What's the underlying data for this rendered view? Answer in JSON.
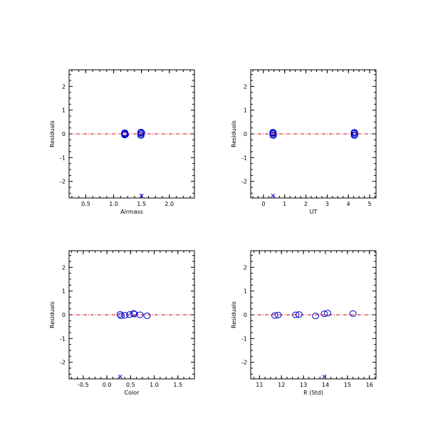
{
  "chart_data": [
    {
      "type": "scatter",
      "xlabel": "Airmass",
      "ylabel": "Residuals",
      "xlim": [
        0.2,
        2.45
      ],
      "ylim": [
        -2.7,
        2.7
      ],
      "xticks": [
        0.5,
        1.0,
        1.5,
        2.0
      ],
      "xticklabels": [
        "0.5",
        "1.0",
        "1.5",
        "2.0"
      ],
      "yticks": [
        -2,
        -1,
        0,
        1,
        2
      ],
      "yticklabels": [
        "-2",
        "-1",
        "0",
        "1",
        "2"
      ],
      "zero_line": 0,
      "points": [
        {
          "x": 1.2,
          "y": 0.05
        },
        {
          "x": 1.2,
          "y": 0.0
        },
        {
          "x": 1.2,
          "y": -0.05
        },
        {
          "x": 1.2,
          "y": 0.02
        },
        {
          "x": 1.21,
          "y": -0.03
        },
        {
          "x": 1.49,
          "y": 0.08
        },
        {
          "x": 1.49,
          "y": 0.03
        },
        {
          "x": 1.49,
          "y": -0.02
        },
        {
          "x": 1.49,
          "y": -0.07
        },
        {
          "x": 1.5,
          "y": 0.05
        }
      ],
      "rejected": [
        {
          "x": 1.5,
          "y": -2.6
        }
      ]
    },
    {
      "type": "scatter",
      "xlabel": "UT",
      "ylabel": "Residuals",
      "xlim": [
        -0.6,
        5.3
      ],
      "ylim": [
        -2.7,
        2.7
      ],
      "xticks": [
        0,
        1,
        2,
        3,
        4,
        5
      ],
      "xticklabels": [
        "0",
        "1",
        "2",
        "3",
        "4",
        "5"
      ],
      "yticks": [
        -2,
        -1,
        0,
        1,
        2
      ],
      "yticklabels": [
        "-2",
        "-1",
        "0",
        "1",
        "2"
      ],
      "zero_line": 0,
      "points": [
        {
          "x": 0.45,
          "y": 0.07
        },
        {
          "x": 0.45,
          "y": 0.02
        },
        {
          "x": 0.45,
          "y": -0.03
        },
        {
          "x": 0.46,
          "y": -0.07
        },
        {
          "x": 0.45,
          "y": 0.04
        },
        {
          "x": 4.28,
          "y": 0.07
        },
        {
          "x": 4.28,
          "y": 0.02
        },
        {
          "x": 4.29,
          "y": -0.03
        },
        {
          "x": 4.28,
          "y": -0.07
        },
        {
          "x": 4.29,
          "y": 0.03
        }
      ],
      "rejected": [
        {
          "x": 0.45,
          "y": -2.6
        }
      ]
    },
    {
      "type": "scatter",
      "xlabel": "Color",
      "ylabel": "Residuals",
      "xlim": [
        -0.8,
        1.85
      ],
      "ylim": [
        -2.7,
        2.7
      ],
      "xticks": [
        -0.5,
        0.0,
        0.5,
        1.0,
        1.5
      ],
      "xticklabels": [
        "-0.5",
        "0.0",
        "0.5",
        "1.0",
        "1.5"
      ],
      "yticks": [
        -2,
        -1,
        0,
        1,
        2
      ],
      "yticklabels": [
        "-2",
        "-1",
        "0",
        "1",
        "2"
      ],
      "zero_line": 0,
      "points": [
        {
          "x": 0.28,
          "y": 0.02
        },
        {
          "x": 0.3,
          "y": -0.04
        },
        {
          "x": 0.38,
          "y": -0.02
        },
        {
          "x": 0.48,
          "y": 0.01
        },
        {
          "x": 0.56,
          "y": 0.06
        },
        {
          "x": 0.58,
          "y": 0.03
        },
        {
          "x": 0.7,
          "y": 0.0
        },
        {
          "x": 0.85,
          "y": -0.04
        }
      ],
      "rejected": [
        {
          "x": 0.28,
          "y": -2.6
        }
      ]
    },
    {
      "type": "scatter",
      "xlabel": "R (Std)",
      "ylabel": "Residuals",
      "xlim": [
        10.6,
        16.3
      ],
      "ylim": [
        -2.7,
        2.7
      ],
      "xticks": [
        11,
        12,
        13,
        14,
        15,
        16
      ],
      "xticklabels": [
        "11",
        "12",
        "13",
        "14",
        "15",
        "16"
      ],
      "yticks": [
        -2,
        -1,
        0,
        1,
        2
      ],
      "yticklabels": [
        "-2",
        "-1",
        "0",
        "1",
        "2"
      ],
      "zero_line": 0,
      "points": [
        {
          "x": 11.7,
          "y": -0.03
        },
        {
          "x": 11.85,
          "y": -0.01
        },
        {
          "x": 12.65,
          "y": 0.0
        },
        {
          "x": 12.8,
          "y": 0.01
        },
        {
          "x": 13.55,
          "y": -0.05
        },
        {
          "x": 13.95,
          "y": 0.04
        },
        {
          "x": 14.1,
          "y": 0.07
        },
        {
          "x": 15.25,
          "y": 0.05
        }
      ],
      "rejected": [
        {
          "x": 13.95,
          "y": -2.6
        }
      ]
    }
  ],
  "colors": {
    "points": "#0000cc",
    "zero_line": "#cc0000",
    "frame": "#000000"
  }
}
